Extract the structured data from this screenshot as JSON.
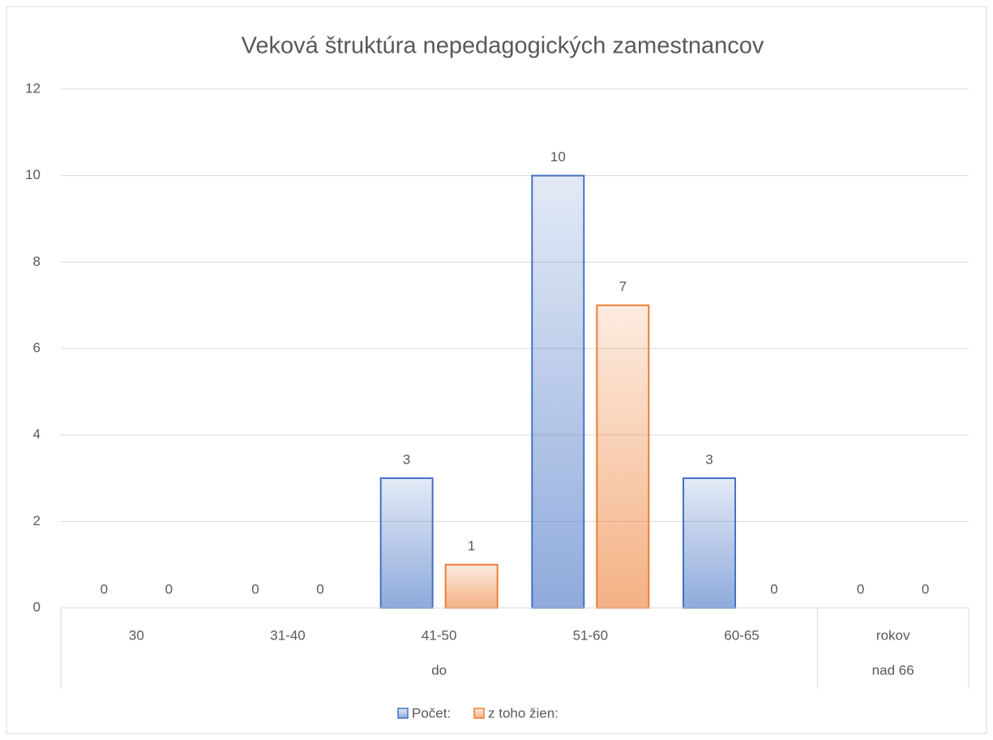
{
  "chart_data": {
    "type": "bar",
    "title": "Veková štruktúra nepedagogických zamestnancov",
    "categories": [
      "30",
      "31-40",
      "41-50",
      "51-60",
      "60-65",
      "rokov"
    ],
    "category_groups": [
      "do",
      null,
      null,
      null,
      null,
      "nad 66"
    ],
    "series": [
      {
        "name": "Počet:",
        "color": "#4472c4",
        "values": [
          0,
          0,
          3,
          10,
          3,
          0
        ]
      },
      {
        "name": "z toho žien:",
        "color": "#ed7d31",
        "values": [
          0,
          0,
          1,
          7,
          0,
          0
        ]
      }
    ],
    "ylim": [
      0,
      12
    ],
    "yticks": [
      0,
      2,
      4,
      6,
      8,
      10,
      12
    ],
    "grid": true,
    "legend": "bottom"
  }
}
